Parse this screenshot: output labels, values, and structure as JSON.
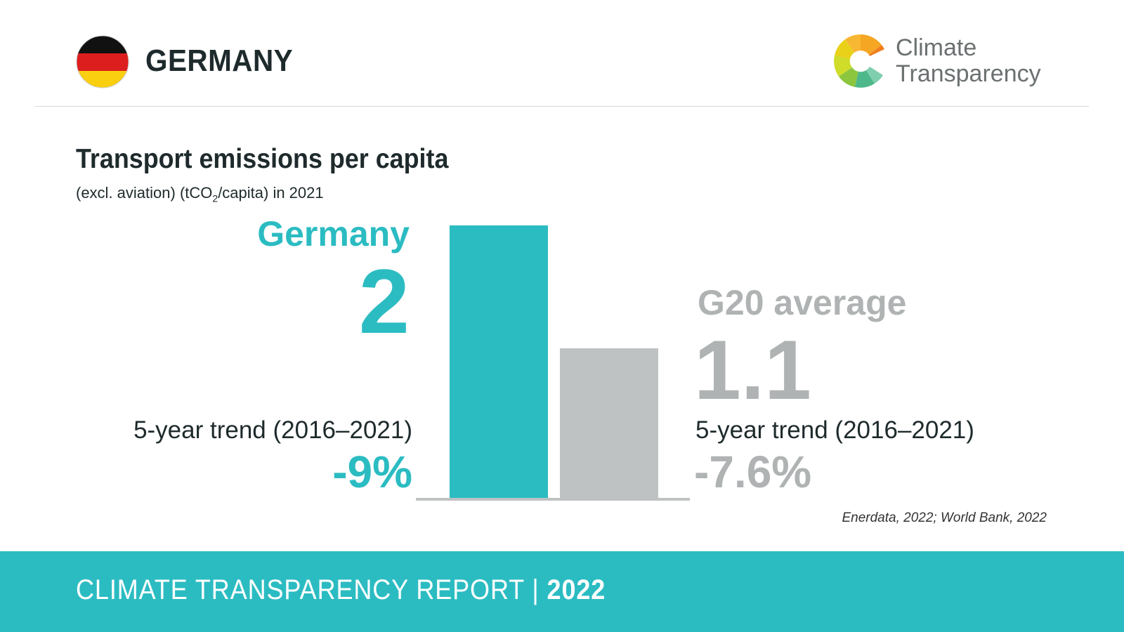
{
  "header": {
    "country": "GERMANY",
    "brand_line1": "Climate",
    "brand_line2": "Transparency",
    "flag_colors": [
      "#111111",
      "#dd1e1e",
      "#f9cf0f"
    ]
  },
  "chart_data": {
    "type": "bar",
    "title": "Transport emissions per capita",
    "subtitle_pre": "(excl. aviation) (tCO",
    "subtitle_sub": "2",
    "subtitle_post": "/capita) in 2021",
    "categories": [
      "Germany",
      "G20 average"
    ],
    "values": [
      2,
      1.1
    ],
    "value_labels": [
      "2",
      "1.1"
    ],
    "trend_label": "5-year trend (2016–2021)",
    "trends": [
      "-9%",
      "-7.6%"
    ],
    "colors": [
      "#2bbcc2",
      "#bfc2c3"
    ],
    "label_colors": [
      "#2bbcc2",
      "#b0b3b3"
    ],
    "ylim": [
      0,
      2
    ],
    "source": "Enerdata, 2022; World Bank, 2022"
  },
  "footer": {
    "report_label": "CLIMATE TRANSPARENCY REPORT",
    "separator": "|",
    "year": "2022"
  }
}
